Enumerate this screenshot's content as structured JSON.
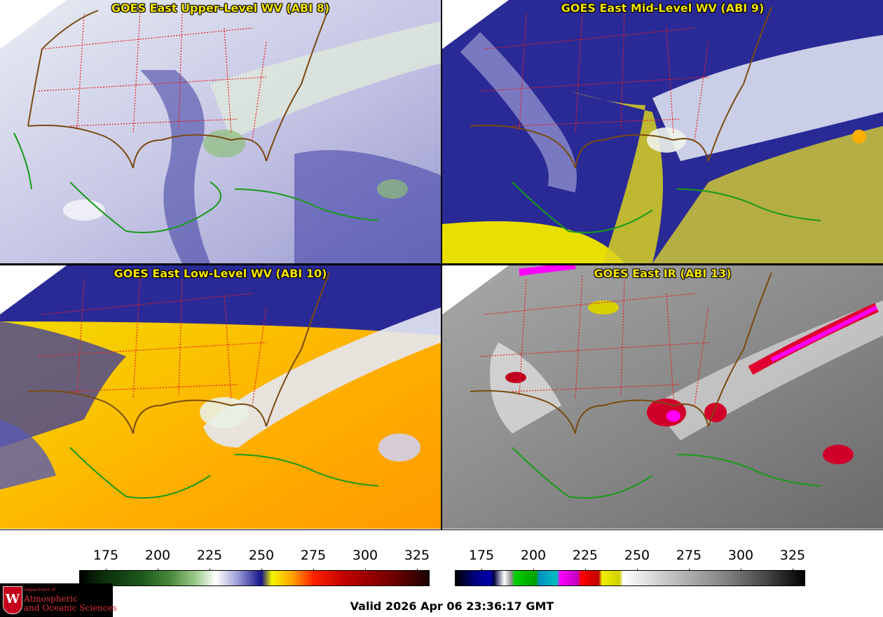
{
  "panels": [
    {
      "title": "GOES East Upper-Level WV (ABI 8)",
      "colortable": "wv"
    },
    {
      "title": "GOES East Mid-Level WV (ABI 9)",
      "colortable": "wv"
    },
    {
      "title": "GOES East Low-Level WV (ABI 10)",
      "colortable": "wv"
    },
    {
      "title": "GOES East IR (ABI 13)",
      "colortable": "ir"
    }
  ],
  "colorbar_wv": {
    "ticks": [
      "175",
      "200",
      "225",
      "250",
      "275",
      "300",
      "325"
    ]
  },
  "colorbar_ir": {
    "ticks": [
      "175",
      "200",
      "225",
      "250",
      "275",
      "300",
      "325"
    ]
  },
  "valid_time": "Valid 2026 Apr 06 23:36:17 GMT",
  "logo": {
    "dept": "Department of",
    "line1": "Atmospheric",
    "line2": "and Oceanic Sciences"
  },
  "colors": {
    "title": "#f5e400",
    "state_lines": "#e02020",
    "country_lines": "#7a4a10",
    "coast": "#1a9a1a"
  }
}
